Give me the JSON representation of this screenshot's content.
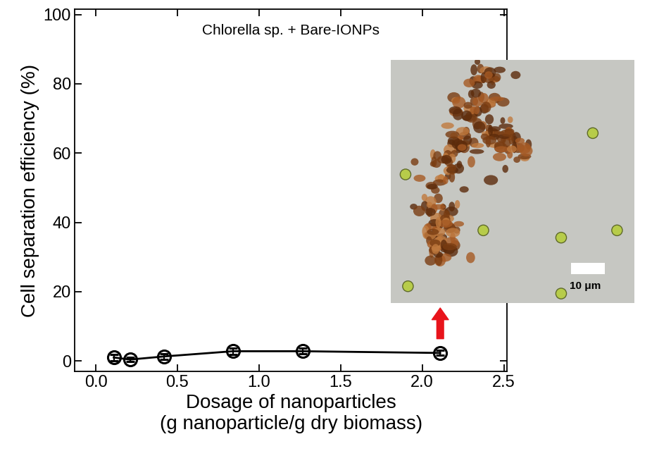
{
  "chart_data": {
    "type": "line",
    "annotation": "Chlorella sp. + Bare-IONPs",
    "x_label": "Dosage of nanoparticles\n(g nanoparticle/g dry biomass)",
    "y_label": "Cell separation efficiency (%)",
    "x": [
      0.11,
      0.21,
      0.42,
      0.84,
      1.27,
      2.11
    ],
    "values": [
      1.0,
      0.4,
      1.3,
      2.8,
      2.8,
      2.3
    ],
    "error": [
      0.9,
      0.6,
      0.8,
      0.9,
      0.8,
      0.7
    ],
    "color": "#000000",
    "marker": "circle",
    "line_style": "solid",
    "xlim": [
      -0.13,
      2.52
    ],
    "xticks": [
      {
        "value": 0,
        "label": "0.0"
      },
      {
        "value": 0.5,
        "label": "0.5"
      },
      {
        "value": 1,
        "label": "1.0"
      },
      {
        "value": 1.5,
        "label": "1.5"
      },
      {
        "value": 2,
        "label": "2.0"
      },
      {
        "value": 2.5,
        "label": "2.5"
      }
    ],
    "ylim": [
      -3,
      101.5
    ],
    "yticks": [
      0,
      20,
      40,
      60,
      80,
      100
    ],
    "grid": false,
    "inset_scale_bar": "10 μm"
  }
}
